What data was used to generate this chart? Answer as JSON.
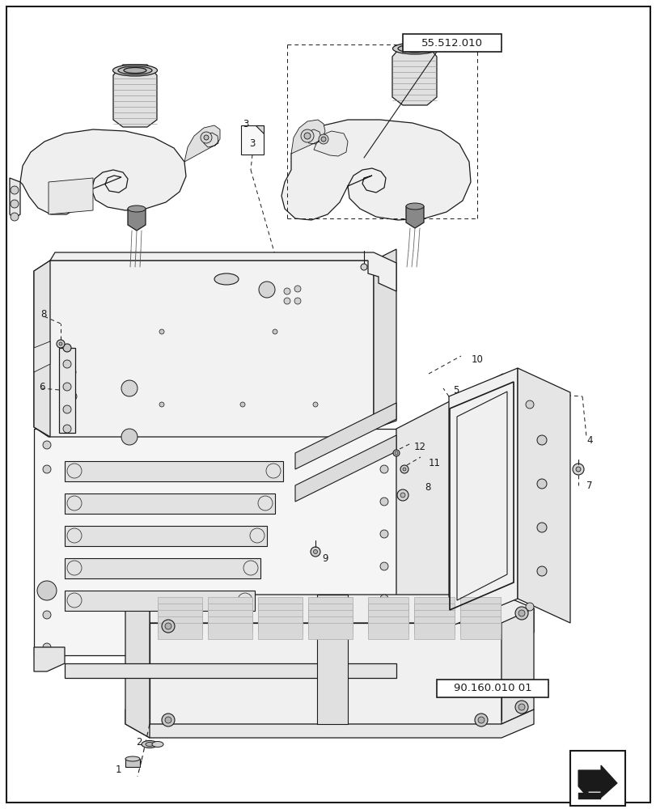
{
  "bg_color": "#ffffff",
  "lc": "#1a1a1a",
  "fig_w": 8.12,
  "fig_h": 10.0,
  "dpi": 100,
  "label_55": "55.512.010",
  "label_90": "90.160.010 01",
  "gray_part": "#e8e8e8",
  "gray_dark": "#c0c0c0",
  "gray_mid": "#d4d4d4",
  "white": "#ffffff",
  "gray_fill": "#f0f0f0",
  "gray_shadow": "#b8b8b8"
}
